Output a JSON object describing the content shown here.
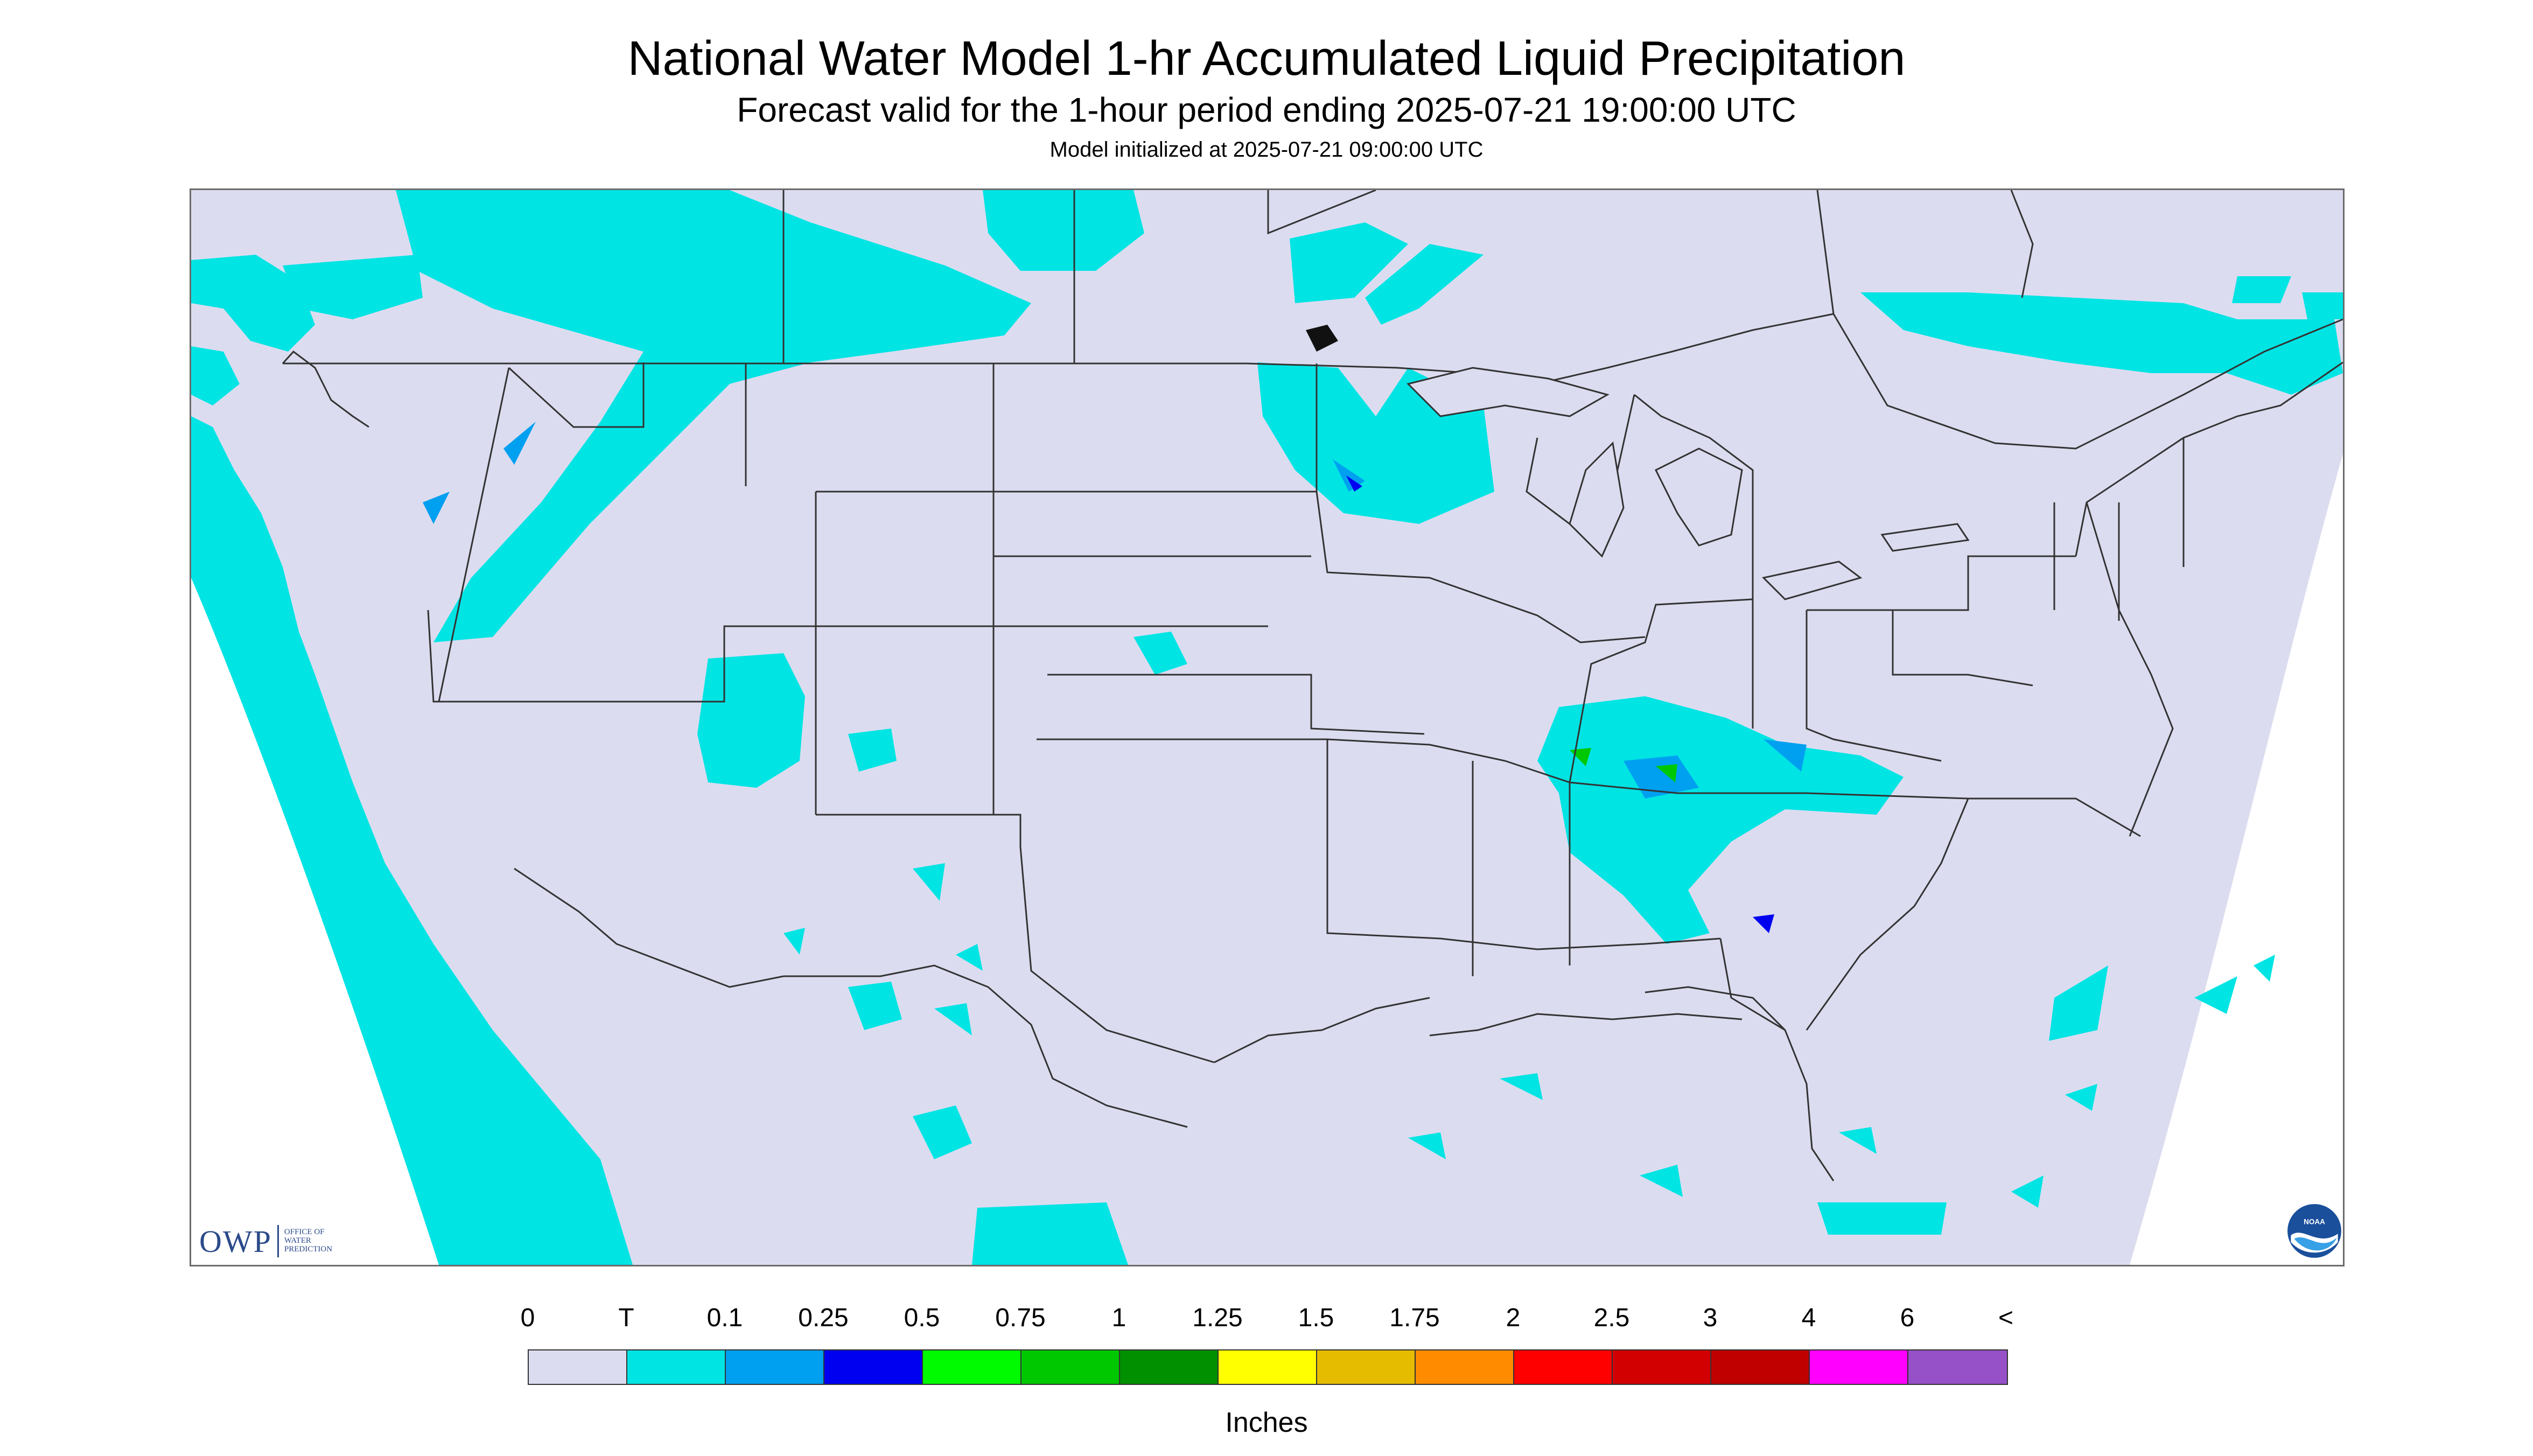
{
  "header": {
    "title": "National Water Model 1-hr Accumulated Liquid Precipitation",
    "subtitle": "Forecast valid for the 1-hour period ending 2025-07-21 19:00:00 UTC",
    "init": "Model initialized at 2025-07-21 09:00:00 UTC"
  },
  "legend": {
    "labels": [
      "0",
      "T",
      "0.1",
      "0.25",
      "0.5",
      "0.75",
      "1",
      "1.25",
      "1.5",
      "1.75",
      "2",
      "2.5",
      "3",
      "4",
      "6",
      "<"
    ],
    "colors": [
      "#dcdcf0",
      "#00e4e4",
      "#00a0f0",
      "#0000f0",
      "#00fa00",
      "#00c800",
      "#009000",
      "#ffff00",
      "#e6bc00",
      "#ff8c00",
      "#ff0000",
      "#d20000",
      "#c00000",
      "#ff00ff",
      "#9650c8"
    ],
    "units": "Inches"
  },
  "logos": {
    "owp": "OWP",
    "owp_sub": [
      "OFFICE OF",
      "WATER",
      "PREDICTION"
    ],
    "noaa": "NOAA"
  },
  "map": {
    "no_data_color": "#ffffff",
    "background_color": "#dcdcf0",
    "trace_color": "#00e4e4",
    "light_color": "#00a0f0",
    "moderate_color": "#0000f0",
    "heavy_color": "#00c800",
    "boundary_color": "#333333"
  }
}
